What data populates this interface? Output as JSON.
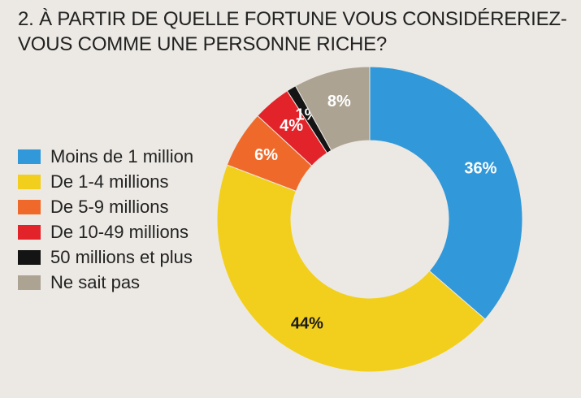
{
  "title_lines": [
    "2. À PARTIR DE QUELLE FORTUNE VOUS CONSIDÉRERIEZ-",
    "VOUS COMME UNE PERSONNE RICHE?"
  ],
  "chart_data": {
    "type": "pie",
    "variant": "donut",
    "title": "2. À PARTIR DE QUELLE FORTUNE VOUS CONSIDÉRERIEZ-VOUS COMME UNE PERSONNE RICHE?",
    "legend_position": "left",
    "slices": [
      {
        "label": "Moins de 1 million",
        "value": 36,
        "value_label": "36%",
        "color": "#3198d9",
        "label_color": "#ffffff"
      },
      {
        "label": "De 1-4 millions",
        "value": 44,
        "value_label": "44%",
        "color": "#f2cf1c",
        "label_color": "#1a1a1a"
      },
      {
        "label": "De 5-9 millions",
        "value": 6,
        "value_label": "6%",
        "color": "#ef6a2a",
        "label_color": "#ffffff"
      },
      {
        "label": "De 10-49 millions",
        "value": 4,
        "value_label": "4%",
        "color": "#e3232a",
        "label_color": "#ffffff"
      },
      {
        "label": "50 millions et plus",
        "value": 1,
        "value_label": "1%",
        "color": "#141414",
        "label_color": "#ffffff"
      },
      {
        "label": "Ne sait pas",
        "value": 8,
        "value_label": "8%",
        "color": "#aca393",
        "label_color": "#ffffff"
      }
    ]
  }
}
